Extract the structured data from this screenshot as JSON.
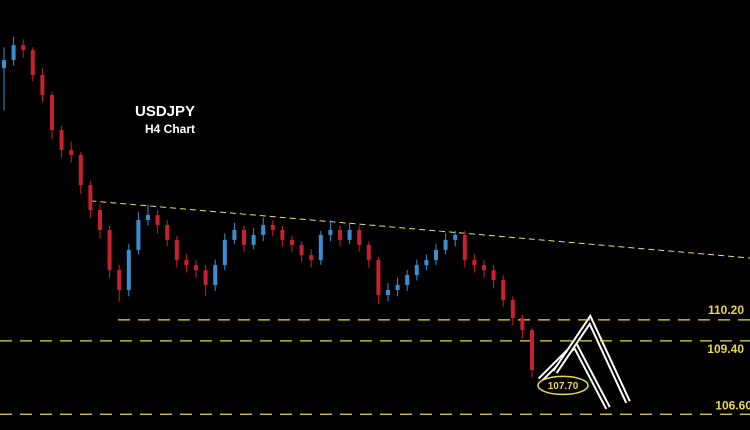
{
  "chart_data": {
    "type": "candlestick",
    "title": "USDJPY",
    "subtitle": "H4 Chart",
    "ylim": [
      106.0,
      122.4
    ],
    "up_color": "#3a8fd0",
    "down_color": "#c8202c",
    "open": [
      119.8,
      120.11,
      120.68,
      120.49,
      119.54,
      118.78,
      117.44,
      116.68,
      116.49,
      115.34,
      114.39,
      113.63,
      112.1,
      111.34,
      112.87,
      114.01,
      114.2,
      113.82,
      113.25,
      112.48,
      112.29,
      112.1,
      111.53,
      112.29,
      113.25,
      113.63,
      113.06,
      113.44,
      113.82,
      113.63,
      113.25,
      113.06,
      112.67,
      112.48,
      113.44,
      113.63,
      113.25,
      113.63,
      113.06,
      112.48,
      111.15,
      111.34,
      111.53,
      111.91,
      112.29,
      112.48,
      112.87,
      113.25,
      113.44,
      112.48,
      112.29,
      112.1,
      111.72,
      110.96,
      110.27,
      109.81
    ],
    "high": [
      120.6,
      121.0,
      120.9,
      120.6,
      119.8,
      118.9,
      117.6,
      117.0,
      116.6,
      115.5,
      114.6,
      113.8,
      112.3,
      113.1,
      114.3,
      114.6,
      114.4,
      114.0,
      113.4,
      112.7,
      112.5,
      112.3,
      112.5,
      113.5,
      113.9,
      113.8,
      113.7,
      114.1,
      114.0,
      113.8,
      113.4,
      113.2,
      112.9,
      113.6,
      114.0,
      113.8,
      113.9,
      113.8,
      113.2,
      112.6,
      111.6,
      111.8,
      112.1,
      112.5,
      112.7,
      113.1,
      113.5,
      113.6,
      113.6,
      112.7,
      112.5,
      112.3,
      111.9,
      111.1,
      110.4,
      109.9
    ],
    "low": [
      118.2,
      119.9,
      120.2,
      119.3,
      118.5,
      117.1,
      116.4,
      116.2,
      115.0,
      114.1,
      113.3,
      111.8,
      110.9,
      111.1,
      112.7,
      113.8,
      113.5,
      113.0,
      112.2,
      112.0,
      111.8,
      111.1,
      111.3,
      112.1,
      113.1,
      112.8,
      112.9,
      113.2,
      113.4,
      113.0,
      112.8,
      112.4,
      112.2,
      112.3,
      113.2,
      113.0,
      113.1,
      112.8,
      112.2,
      110.8,
      110.9,
      111.1,
      111.3,
      111.7,
      112.1,
      112.3,
      112.7,
      113.0,
      112.2,
      112.0,
      111.8,
      111.4,
      110.7,
      110.0,
      109.5,
      108.0
    ],
    "close": [
      120.11,
      120.68,
      120.49,
      119.54,
      118.78,
      117.44,
      116.68,
      116.49,
      115.34,
      114.39,
      113.63,
      112.1,
      111.34,
      112.87,
      114.01,
      114.2,
      113.82,
      113.25,
      112.48,
      112.29,
      112.1,
      111.53,
      112.29,
      113.25,
      113.63,
      113.06,
      113.44,
      113.82,
      113.63,
      113.25,
      113.06,
      112.67,
      112.48,
      113.44,
      113.63,
      113.25,
      113.63,
      113.06,
      112.48,
      111.15,
      111.34,
      111.53,
      111.91,
      112.29,
      112.48,
      112.87,
      113.25,
      113.44,
      112.48,
      112.29,
      112.1,
      111.72,
      110.96,
      110.27,
      109.81,
      108.29
    ],
    "trendline": {
      "x": [
        9,
        77.7
      ],
      "values": [
        114.74,
        112.56
      ],
      "color": "#e8e070"
    },
    "levels": [
      {
        "value": 110.2,
        "label": "110.20"
      },
      {
        "value": 109.4,
        "label": "109.40"
      },
      {
        "value": 106.6,
        "label": "106.60"
      }
    ],
    "level_color": "#e8d84a",
    "price_label": {
      "value": 107.7,
      "label": "107.70"
    }
  }
}
